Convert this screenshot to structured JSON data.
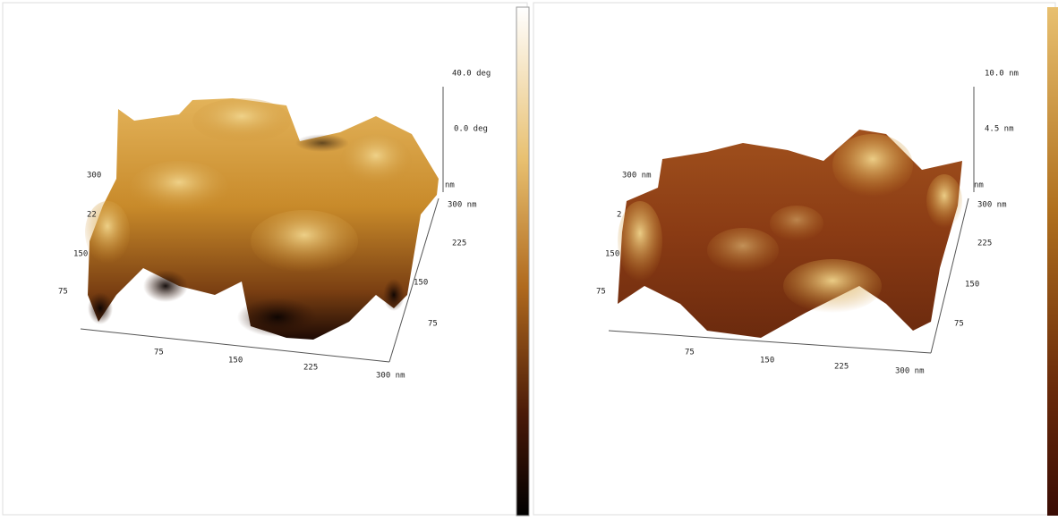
{
  "panels": [
    {
      "z_labels": [
        "40.0 deg",
        "0.0 deg",
        "nm"
      ],
      "left_labels": [
        "300",
        "22",
        "150",
        "75"
      ],
      "bottom_labels": [
        "75",
        "150",
        "225",
        "300 nm"
      ],
      "right_labels": [
        "75",
        "150",
        "225",
        "300 nm"
      ]
    },
    {
      "z_labels": [
        "10.0 nm",
        "4.5 nm",
        "nm"
      ],
      "left_labels": [
        "300 nm",
        "2",
        "150",
        "75"
      ],
      "bottom_labels": [
        "75",
        "150",
        "225",
        "300 nm"
      ],
      "right_labels": [
        "75",
        "150",
        "225",
        "300 nm"
      ]
    }
  ]
}
